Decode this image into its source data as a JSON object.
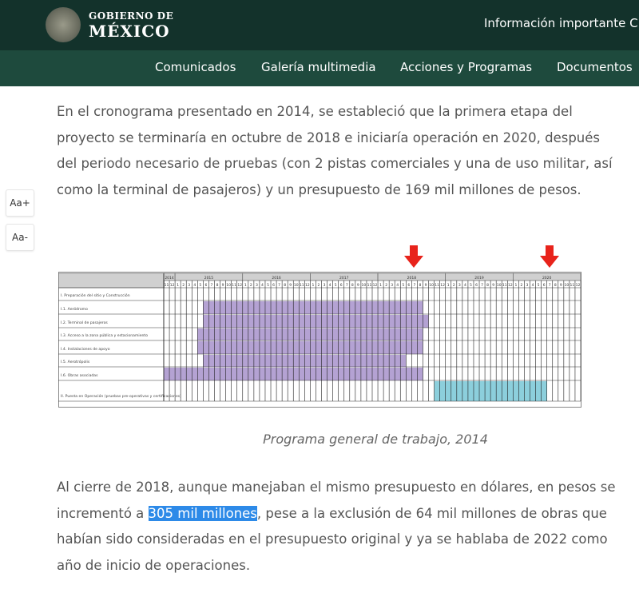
{
  "header": {
    "logo_line1": "GOBIERNO DE",
    "logo_line2": "MÉXICO",
    "info_link": "Información importante C"
  },
  "nav": [
    "Comunicados",
    "Galería multimedia",
    "Acciones y Programas",
    "Documentos"
  ],
  "font_controls": {
    "increase": "Aa+",
    "decrease": "Aa-"
  },
  "article": {
    "paragraph1": "En el cronograma presentado en 2014, se estableció que la primera etapa del proyecto se terminaría en octubre de 2018 e iniciaría operación en 2020, después del periodo necesario de pruebas (con 2 pistas comerciales y una de uso militar, así como la terminal de pasajeros) y un presupuesto de 169 mil millones de pesos.",
    "caption": "Programa general de trabajo, 2014",
    "paragraph2_before": "Al cierre de 2018, aunque manejaban el mismo presupuesto en dólares, en pesos se incrementó a ",
    "paragraph2_highlight": "305 mil millones",
    "paragraph2_after": ", pese a la exclusión de 64 mil millones de obras que habían sido consideradas en el presupuesto original y ya se hablaba de 2022 como año de inicio de operaciones."
  },
  "gantt": {
    "years": [
      {
        "year": "2014",
        "months": [
          "11",
          "12"
        ]
      },
      {
        "year": "2015",
        "months": [
          "1",
          "2",
          "3",
          "4",
          "5",
          "6",
          "7",
          "8",
          "9",
          "10",
          "11",
          "12"
        ]
      },
      {
        "year": "2016",
        "months": [
          "1",
          "2",
          "3",
          "4",
          "5",
          "6",
          "7",
          "8",
          "9",
          "10",
          "11",
          "12"
        ]
      },
      {
        "year": "2017",
        "months": [
          "1",
          "2",
          "3",
          "4",
          "5",
          "6",
          "7",
          "8",
          "9",
          "10",
          "11",
          "12"
        ]
      },
      {
        "year": "2018",
        "months": [
          "1",
          "2",
          "3",
          "4",
          "5",
          "6",
          "7",
          "8",
          "9",
          "10",
          "11",
          "12"
        ]
      },
      {
        "year": "2019",
        "months": [
          "1",
          "2",
          "3",
          "4",
          "5",
          "6",
          "7",
          "8",
          "9",
          "10",
          "11",
          "12"
        ]
      },
      {
        "year": "2020",
        "months": [
          "1",
          "2",
          "3",
          "4",
          "5",
          "6",
          "7",
          "8",
          "9",
          "10",
          "11",
          "12"
        ]
      }
    ],
    "tasks": [
      {
        "label": "I. Preparación del sitio y Construcción",
        "start": null,
        "end": null
      },
      {
        "label": "I.1. Aeródromo",
        "start": "2015-06",
        "end": "2018-08"
      },
      {
        "label": "I.2. Terminal de pasajeros",
        "start": "2015-06",
        "end": "2018-09"
      },
      {
        "label": "I.3. Acceso a la zona pública y estacionamiento",
        "start": "2015-05",
        "end": "2018-08"
      },
      {
        "label": "I.4. Instalaciones de apoyo",
        "start": "2015-05",
        "end": "2018-08"
      },
      {
        "label": "I.5. Aerotrópolis",
        "start": "2015-06",
        "end": "2018-05"
      },
      {
        "label": "I.6. Obras asociadas",
        "start": "2014-11",
        "end": "2018-08"
      },
      {
        "label": "II. Puesta en Operación (pruebas pre-operativas y certificaciones)",
        "start": "2018-11",
        "end": "2020-06",
        "color": "#8ccfdc"
      }
    ],
    "bar_color": "#b4a2d3",
    "markers": [
      "2018-07",
      "2020-07"
    ],
    "marker_color": "#e8231b"
  }
}
